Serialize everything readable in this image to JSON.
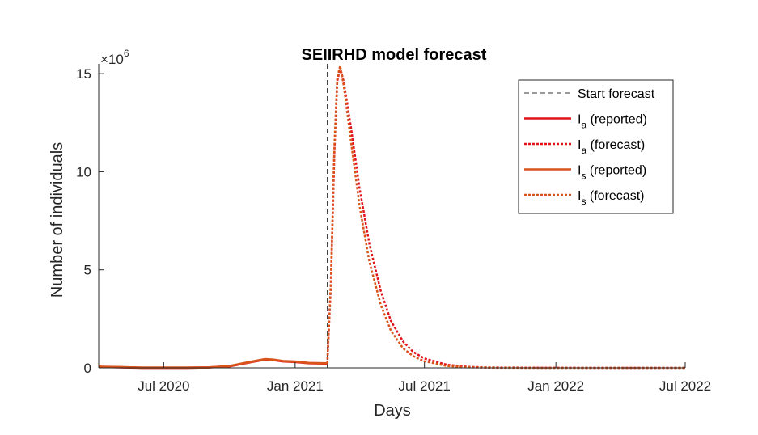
{
  "chart_data": {
    "type": "line",
    "title": "SEIIRHD model forecast",
    "xlabel": "Days",
    "ylabel": "Number of individuals",
    "y_exponent_label": "×10",
    "y_exponent_power": "6",
    "ylim": [
      0,
      15.5
    ],
    "xlim": [
      "2020-04-01",
      "2022-07-01"
    ],
    "x_ticks": [
      {
        "date": "2020-07-01",
        "label": "Jul 2020"
      },
      {
        "date": "2021-01-01",
        "label": "Jan 2021"
      },
      {
        "date": "2021-07-01",
        "label": "Jul 2021"
      },
      {
        "date": "2022-01-01",
        "label": "Jan 2022"
      },
      {
        "date": "2022-07-01",
        "label": "Jul 2022"
      }
    ],
    "y_ticks": [
      {
        "value": 0,
        "label": "0"
      },
      {
        "value": 5,
        "label": "5"
      },
      {
        "value": 10,
        "label": "10"
      },
      {
        "value": 15,
        "label": "15"
      }
    ],
    "start_forecast": "2021-02-15",
    "grid": false,
    "legend_position": "top-right",
    "colors": {
      "ia": "#e0141a",
      "is": "#d9541a",
      "start": "#333333",
      "axis": "#262626"
    },
    "series": [
      {
        "name": "Start forecast",
        "kind": "vline",
        "style": "dashed",
        "color_key": "start"
      },
      {
        "name": "I",
        "sub": "a",
        "suffix": " (reported)",
        "style": "solid",
        "color_key": "ia",
        "x": [
          "2020-04-01",
          "2020-05-01",
          "2020-06-01",
          "2020-07-01",
          "2020-08-01",
          "2020-09-01",
          "2020-10-01",
          "2020-11-01",
          "2020-11-20",
          "2020-12-01",
          "2020-12-15",
          "2021-01-01",
          "2021-01-20",
          "2021-02-15"
        ],
        "y": [
          0.05,
          0.03,
          0.01,
          0.01,
          0.01,
          0.02,
          0.08,
          0.3,
          0.42,
          0.4,
          0.33,
          0.3,
          0.24,
          0.22
        ]
      },
      {
        "name": "I",
        "sub": "a",
        "suffix": " (forecast)",
        "style": "dotted",
        "color_key": "ia",
        "x": [
          "2021-02-15",
          "2021-02-20",
          "2021-02-25",
          "2021-03-01",
          "2021-03-05",
          "2021-03-10",
          "2021-03-20",
          "2021-04-01",
          "2021-04-15",
          "2021-05-01",
          "2021-05-15",
          "2021-06-01",
          "2021-06-15",
          "2021-07-01",
          "2021-08-01",
          "2021-09-01",
          "2021-10-01",
          "2021-12-01",
          "2022-03-01",
          "2022-07-01"
        ],
        "y": [
          0.22,
          4.2,
          11.0,
          14.6,
          15.3,
          14.6,
          12.3,
          9.2,
          6.3,
          3.9,
          2.4,
          1.35,
          0.82,
          0.48,
          0.16,
          0.05,
          0.02,
          0.01,
          0.0,
          0.0
        ]
      },
      {
        "name": "I",
        "sub": "s",
        "suffix": " (reported)",
        "style": "solid",
        "color_key": "is",
        "x": [
          "2020-04-01",
          "2020-05-01",
          "2020-06-01",
          "2020-07-01",
          "2020-08-01",
          "2020-09-01",
          "2020-10-01",
          "2020-11-01",
          "2020-11-20",
          "2020-12-01",
          "2020-12-15",
          "2021-01-01",
          "2021-01-20",
          "2021-02-15"
        ],
        "y": [
          0.06,
          0.04,
          0.01,
          0.01,
          0.01,
          0.02,
          0.09,
          0.32,
          0.45,
          0.42,
          0.35,
          0.32,
          0.25,
          0.23
        ]
      },
      {
        "name": "I",
        "sub": "s",
        "suffix": " (forecast)",
        "style": "dotted",
        "color_key": "is",
        "x": [
          "2021-02-15",
          "2021-02-20",
          "2021-02-25",
          "2021-03-01",
          "2021-03-05",
          "2021-03-10",
          "2021-03-20",
          "2021-04-01",
          "2021-04-15",
          "2021-05-01",
          "2021-05-15",
          "2021-06-01",
          "2021-06-15",
          "2021-07-01",
          "2021-08-01",
          "2021-09-01",
          "2021-10-01",
          "2021-12-01",
          "2022-03-01",
          "2022-07-01"
        ],
        "y": [
          0.23,
          4.4,
          11.3,
          14.8,
          15.4,
          14.4,
          11.6,
          8.3,
          5.4,
          3.2,
          1.9,
          1.0,
          0.6,
          0.34,
          0.1,
          0.03,
          0.01,
          0.0,
          0.0,
          0.0
        ]
      }
    ]
  }
}
